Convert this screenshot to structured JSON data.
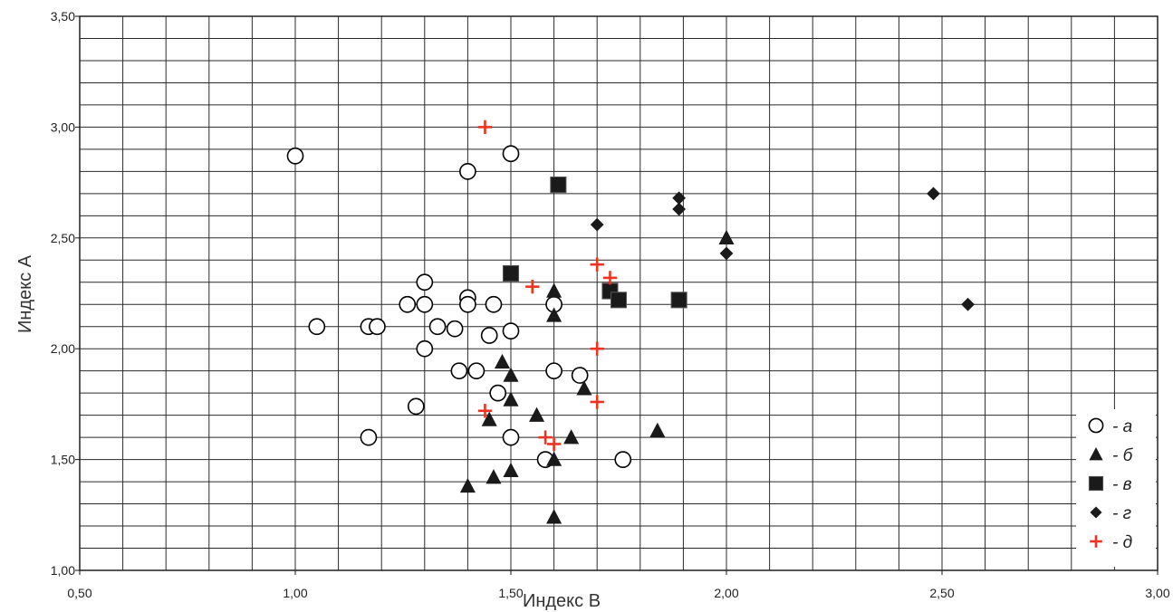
{
  "chart_data": {
    "type": "scatter",
    "xlabel": "Индекс B",
    "ylabel": "Индекс А",
    "xlim": [
      0.5,
      3.0
    ],
    "ylim": [
      1.0,
      3.5
    ],
    "x_tick_labels": [
      "0,50",
      "1,00",
      "1,50",
      "2,00",
      "2,50",
      "3,00"
    ],
    "y_tick_labels": [
      "1,00",
      "1,50",
      "2,00",
      "2,50",
      "3,00",
      "3,50"
    ],
    "grid": true,
    "legend_position": "bottom-right",
    "series": [
      {
        "name": "- а",
        "marker": "open-circle",
        "color": "#000000",
        "points": [
          [
            1.0,
            2.87
          ],
          [
            1.4,
            2.8
          ],
          [
            1.5,
            2.88
          ],
          [
            1.3,
            2.3
          ],
          [
            1.26,
            2.2
          ],
          [
            1.3,
            2.2
          ],
          [
            1.4,
            2.23
          ],
          [
            1.4,
            2.2
          ],
          [
            1.46,
            2.2
          ],
          [
            1.6,
            2.2
          ],
          [
            1.05,
            2.1
          ],
          [
            1.17,
            2.1
          ],
          [
            1.19,
            2.1
          ],
          [
            1.33,
            2.1
          ],
          [
            1.37,
            2.09
          ],
          [
            1.45,
            2.06
          ],
          [
            1.5,
            2.08
          ],
          [
            1.3,
            2.0
          ],
          [
            1.38,
            1.9
          ],
          [
            1.42,
            1.9
          ],
          [
            1.6,
            1.9
          ],
          [
            1.66,
            1.88
          ],
          [
            1.47,
            1.8
          ],
          [
            1.28,
            1.74
          ],
          [
            1.17,
            1.6
          ],
          [
            1.5,
            1.6
          ],
          [
            1.58,
            1.5
          ],
          [
            1.76,
            1.5
          ]
        ]
      },
      {
        "name": "- б",
        "marker": "triangle",
        "color": "#1a1a1a",
        "points": [
          [
            1.6,
            2.26
          ],
          [
            1.6,
            2.15
          ],
          [
            2.0,
            2.5
          ],
          [
            1.48,
            1.94
          ],
          [
            1.5,
            1.88
          ],
          [
            1.5,
            1.77
          ],
          [
            1.67,
            1.82
          ],
          [
            1.45,
            1.68
          ],
          [
            1.56,
            1.7
          ],
          [
            1.64,
            1.6
          ],
          [
            1.84,
            1.63
          ],
          [
            1.6,
            1.5
          ],
          [
            1.5,
            1.45
          ],
          [
            1.46,
            1.42
          ],
          [
            1.4,
            1.38
          ],
          [
            1.6,
            1.24
          ]
        ]
      },
      {
        "name": "- в",
        "marker": "square",
        "color": "#1a1a1a",
        "points": [
          [
            1.61,
            2.74
          ],
          [
            1.5,
            2.34
          ],
          [
            1.73,
            2.26
          ],
          [
            1.75,
            2.22
          ],
          [
            1.89,
            2.22
          ]
        ]
      },
      {
        "name": "- г",
        "marker": "diamond",
        "color": "#1a1a1a",
        "points": [
          [
            1.7,
            2.56
          ],
          [
            1.89,
            2.68
          ],
          [
            1.89,
            2.63
          ],
          [
            2.0,
            2.43
          ],
          [
            2.48,
            2.7
          ],
          [
            2.56,
            2.2
          ]
        ]
      },
      {
        "name": "- д",
        "marker": "plus",
        "color": "#ee3322",
        "points": [
          [
            1.44,
            3.0
          ],
          [
            1.7,
            2.38
          ],
          [
            1.73,
            2.32
          ],
          [
            1.55,
            2.28
          ],
          [
            1.7,
            2.0
          ],
          [
            1.7,
            1.76
          ],
          [
            1.44,
            1.72
          ],
          [
            1.58,
            1.6
          ],
          [
            1.6,
            1.57
          ]
        ]
      }
    ]
  }
}
